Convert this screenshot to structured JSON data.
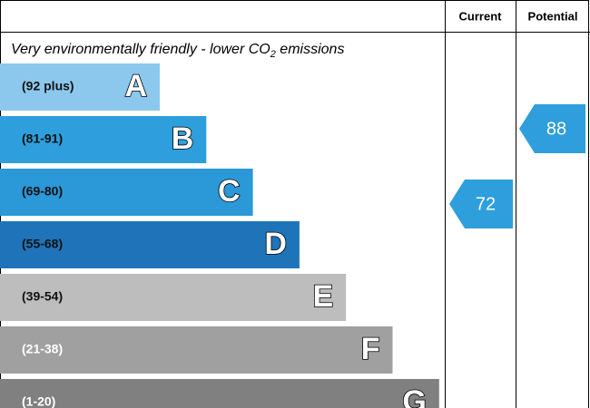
{
  "header": {
    "current": "Current",
    "potential": "Potential"
  },
  "subtitle": {
    "before": "Very environmentally friendly - lower CO",
    "sub": "2",
    "after": " emissions"
  },
  "bands": [
    {
      "range": "(92 plus)",
      "letter": "A",
      "color": "#8cc8ee",
      "text_color": "#111111"
    },
    {
      "range": "(81-91)",
      "letter": "B",
      "color": "#2e9fdc",
      "text_color": "#111111"
    },
    {
      "range": "(69-80)",
      "letter": "C",
      "color": "#2b98d8",
      "text_color": "#111111"
    },
    {
      "range": "(55-68)",
      "letter": "D",
      "color": "#1f74b9",
      "text_color": "#111111"
    },
    {
      "range": "(39-54)",
      "letter": "E",
      "color": "#bdbdbd",
      "text_color": "#111111"
    },
    {
      "range": "(21-38)",
      "letter": "F",
      "color": "#a0a0a0",
      "text_color": "#ffffff"
    },
    {
      "range": "(1-20)",
      "letter": "G",
      "color": "#808080",
      "text_color": "#ffffff"
    }
  ],
  "current": {
    "value": "72",
    "color": "#2e9fdc"
  },
  "potential": {
    "value": "88",
    "color": "#2e9fdc"
  }
}
